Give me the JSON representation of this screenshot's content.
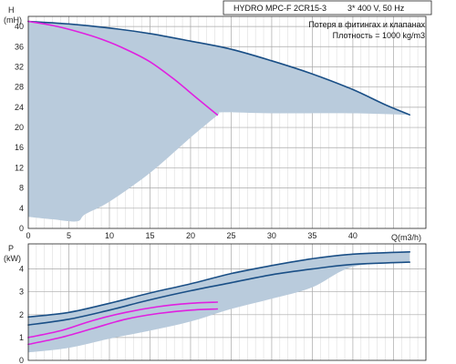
{
  "chart_data": [
    {
      "type": "line",
      "panel": "head",
      "header_title": "HYDRO MPC-F 2CR15-3",
      "header_power": "3* 400 V, 50 Hz",
      "info_lines": [
        "Потеря в фитингах и клапанах",
        "Плотность = 1000 kg/m3"
      ],
      "ylabel": "H",
      "yunit": "(mH)",
      "xlabel": "Q(m3/h)",
      "xlim": [
        0,
        49
      ],
      "ylim": [
        0,
        42
      ],
      "xticks": [
        0,
        5,
        10,
        15,
        20,
        25,
        30,
        35,
        40
      ],
      "yticks": [
        0,
        4,
        8,
        12,
        16,
        20,
        24,
        28,
        32,
        36,
        40
      ],
      "grid": true,
      "region": {
        "color": "#b9cbdc",
        "upper": [
          [
            0,
            41
          ],
          [
            5,
            40.5
          ],
          [
            10,
            39.7
          ],
          [
            15,
            38.6
          ],
          [
            20,
            37.1
          ],
          [
            25,
            35.5
          ],
          [
            30,
            33.2
          ],
          [
            35,
            30.6
          ],
          [
            40,
            27.5
          ],
          [
            44,
            24.5
          ],
          [
            47,
            22.5
          ]
        ],
        "lower": [
          [
            47,
            22.5
          ],
          [
            40,
            22.8
          ],
          [
            30,
            22.8
          ],
          [
            24,
            23
          ],
          [
            23.3,
            22.4
          ],
          [
            20,
            18
          ],
          [
            15,
            11
          ],
          [
            10,
            5.3
          ],
          [
            7,
            2.8
          ],
          [
            6,
            1.4
          ],
          [
            3,
            1.8
          ],
          [
            0,
            2.3
          ]
        ]
      },
      "series": [
        {
          "color": "#1a4f86",
          "points": [
            [
              0,
              41
            ],
            [
              5,
              40.5
            ],
            [
              10,
              39.7
            ],
            [
              15,
              38.6
            ],
            [
              20,
              37.1
            ],
            [
              25,
              35.5
            ],
            [
              30,
              33.2
            ],
            [
              35,
              30.6
            ],
            [
              40,
              27.5
            ],
            [
              44,
              24.5
            ],
            [
              47,
              22.5
            ]
          ]
        },
        {
          "color": "#e020e0",
          "points": [
            [
              0,
              41
            ],
            [
              3,
              40.2
            ],
            [
              6,
              39
            ],
            [
              9,
              37.5
            ],
            [
              12,
              35.5
            ],
            [
              15,
              33
            ],
            [
              18,
              29.5
            ],
            [
              21,
              25.5
            ],
            [
              23.3,
              22.5
            ]
          ]
        }
      ]
    },
    {
      "type": "line",
      "panel": "power",
      "ylabel": "P",
      "yunit": "(kW)",
      "xlim": [
        0,
        49
      ],
      "ylim": [
        0,
        5.1
      ],
      "yticks": [
        0,
        1,
        2,
        3,
        4
      ],
      "grid": true,
      "region": {
        "color": "#b9cbdc",
        "upper": [
          [
            0,
            1.9
          ],
          [
            5,
            2.1
          ],
          [
            10,
            2.5
          ],
          [
            15,
            2.95
          ],
          [
            20,
            3.35
          ],
          [
            25,
            3.8
          ],
          [
            30,
            4.15
          ],
          [
            35,
            4.45
          ],
          [
            40,
            4.65
          ],
          [
            47,
            4.75
          ]
        ],
        "lower": [
          [
            47,
            4.3
          ],
          [
            40,
            4.1
          ],
          [
            35,
            3.2
          ],
          [
            30,
            2.7
          ],
          [
            25,
            2.25
          ],
          [
            20,
            1.7
          ],
          [
            15,
            1.3
          ],
          [
            10,
            0.95
          ],
          [
            5,
            0.55
          ],
          [
            0,
            0.35
          ]
        ]
      },
      "series": [
        {
          "color": "#1a4f86",
          "points": [
            [
              0,
              1.9
            ],
            [
              5,
              2.1
            ],
            [
              10,
              2.5
            ],
            [
              15,
              2.95
            ],
            [
              20,
              3.35
            ],
            [
              25,
              3.8
            ],
            [
              30,
              4.15
            ],
            [
              35,
              4.45
            ],
            [
              40,
              4.65
            ],
            [
              47,
              4.75
            ]
          ]
        },
        {
          "color": "#1a4f86",
          "points": [
            [
              0,
              1.55
            ],
            [
              5,
              1.8
            ],
            [
              10,
              2.2
            ],
            [
              15,
              2.65
            ],
            [
              20,
              3.05
            ],
            [
              25,
              3.4
            ],
            [
              30,
              3.75
            ],
            [
              35,
              4.0
            ],
            [
              40,
              4.2
            ],
            [
              47,
              4.3
            ]
          ]
        },
        {
          "color": "#e020e0",
          "points": [
            [
              0,
              1.0
            ],
            [
              4,
              1.3
            ],
            [
              8,
              1.75
            ],
            [
              12,
              2.1
            ],
            [
              16,
              2.35
            ],
            [
              20,
              2.5
            ],
            [
              23.3,
              2.55
            ]
          ]
        },
        {
          "color": "#e020e0",
          "points": [
            [
              0,
              0.7
            ],
            [
              4,
              1.0
            ],
            [
              8,
              1.4
            ],
            [
              12,
              1.8
            ],
            [
              16,
              2.05
            ],
            [
              20,
              2.2
            ],
            [
              23.3,
              2.25
            ]
          ]
        }
      ]
    }
  ]
}
